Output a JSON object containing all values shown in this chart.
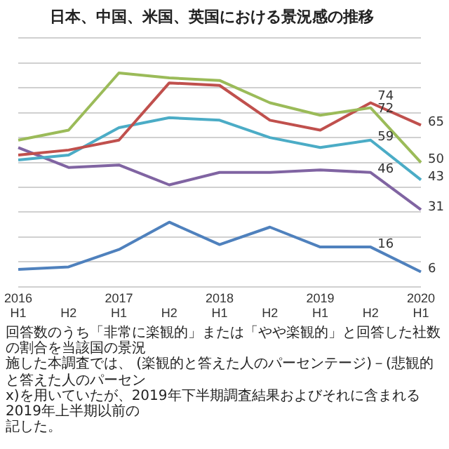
{
  "chart_data": {
    "type": "line",
    "title": "日本、中国、米国、英国における景況感の推移",
    "categories": [
      "2016 H1",
      "H2",
      "2017 H1",
      "H2",
      "2018 H1",
      "H2",
      "2019 H1",
      "H2",
      "2020 H1"
    ],
    "series": [
      {
        "color": "#9bbb59",
        "values": [
          59,
          63,
          86,
          84,
          83,
          74,
          69,
          72,
          50
        ],
        "value_labels": [
          null,
          null,
          null,
          null,
          null,
          null,
          null,
          "72",
          "50"
        ]
      },
      {
        "color": "#c0504d",
        "values": [
          53,
          55,
          59,
          82,
          81,
          67,
          63,
          74,
          65
        ],
        "value_labels": [
          null,
          null,
          null,
          null,
          null,
          null,
          null,
          "74",
          "65"
        ]
      },
      {
        "color": "#4bacc6",
        "values": [
          51,
          53,
          64,
          68,
          67,
          60,
          56,
          59,
          43
        ],
        "value_labels": [
          null,
          null,
          null,
          null,
          null,
          null,
          null,
          "59",
          "43"
        ]
      },
      {
        "color": "#8064a2",
        "values": [
          56,
          48,
          49,
          41,
          46,
          46,
          47,
          46,
          31
        ],
        "value_labels": [
          null,
          null,
          null,
          null,
          null,
          null,
          null,
          "46",
          "31"
        ]
      },
      {
        "color": "#4f81bd",
        "values": [
          7,
          8,
          15,
          26,
          17,
          24,
          16,
          16,
          6
        ],
        "value_labels": [
          null,
          null,
          null,
          null,
          null,
          null,
          null,
          "16",
          "6"
        ]
      }
    ],
    "ylim": [
      0,
      100
    ],
    "yticks": [
      {
        "value": 0,
        "label": null
      },
      {
        "value": 10,
        "label": null
      },
      {
        "value": 20,
        "label": null
      },
      {
        "value": 30,
        "label": null
      },
      {
        "value": 40,
        "label": null
      },
      {
        "value": 50,
        "label": null
      },
      {
        "value": 60,
        "label": null
      },
      {
        "value": 70,
        "label": null
      },
      {
        "value": 80,
        "label": null
      },
      {
        "value": 90,
        "label": null
      },
      {
        "value": 100,
        "label": null
      }
    ],
    "grid": "y",
    "tick_labels": "x",
    "marker": "none",
    "line_style": "solid",
    "annotations": [
      "回答数のうち「非常に楽観的」または「やや楽観的」と回答した社数の割合を当該国の景況",
      "施した本調査では、 (楽観的と答えた人のパーセンテージ)－(悲観的と答えた人のパーセン",
      "x)を用いていたが、2019年下半期調査結果およびそれに含まれる2019年上半期以前の",
      "記した。"
    ]
  }
}
